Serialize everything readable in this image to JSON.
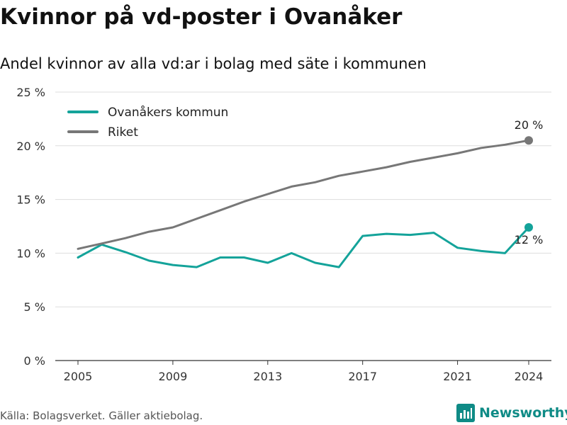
{
  "title": "Kvinnor på vd-poster i Ovanåker",
  "subtitle": "Andel kvinnor av alla vd:ar i bolag med säte i kommunen",
  "source": "Källa: Bolagsverket. Gäller aktiebolag.",
  "brand": "Newsworthy",
  "colors": {
    "kommun": "#14a39a",
    "riket": "#777777",
    "brand": "#0f8b86"
  },
  "chart_data": {
    "type": "line",
    "x": [
      2005,
      2006,
      2007,
      2008,
      2009,
      2010,
      2011,
      2012,
      2013,
      2014,
      2015,
      2016,
      2017,
      2018,
      2019,
      2020,
      2021,
      2022,
      2023,
      2024
    ],
    "series": [
      {
        "name": "Ovanåkers kommun",
        "color": "#14a39a",
        "values": [
          9.6,
          10.8,
          10.1,
          9.3,
          8.9,
          8.7,
          9.6,
          9.6,
          9.1,
          10.0,
          9.1,
          8.7,
          11.6,
          11.8,
          11.7,
          11.9,
          10.5,
          10.2,
          10.0,
          12.4
        ],
        "end_label": "12 %"
      },
      {
        "name": "Riket",
        "color": "#777777",
        "values": [
          10.4,
          10.9,
          11.4,
          12.0,
          12.4,
          13.2,
          14.0,
          14.8,
          15.5,
          16.2,
          16.6,
          17.2,
          17.6,
          18.0,
          18.5,
          18.9,
          19.3,
          19.8,
          20.1,
          20.5
        ],
        "end_label": "20 %"
      }
    ],
    "xticks": [
      "2005",
      "2009",
      "2013",
      "2017",
      "2021",
      "2024"
    ],
    "yticks": [
      "0 %",
      "5 %",
      "10 %",
      "15 %",
      "20 %",
      "25 %"
    ],
    "ylim": [
      0,
      25
    ],
    "grid": true,
    "legend_position": "top-left"
  }
}
